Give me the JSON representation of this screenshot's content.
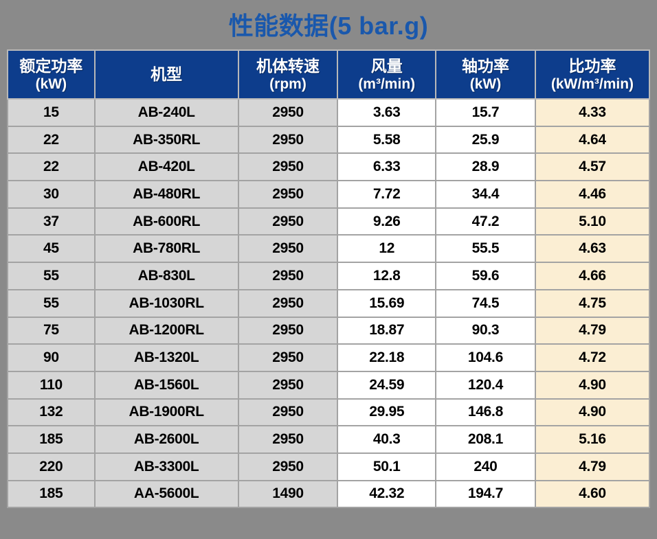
{
  "title": {
    "text": "性能数据(5 bar.g)"
  },
  "colors": {
    "page_background": "#8A8A8A",
    "title_text": "#1A58AC",
    "header_background": "#0D3D8C",
    "header_text": "#FFFFFF",
    "gray_column_fill": "#D6D6D6",
    "white_column_fill": "#FFFFFF",
    "highlight_column_fill": "#FBEED3",
    "grid_border": "#A3A3A3",
    "cell_text": "#000000"
  },
  "chart_data": {
    "type": "table",
    "title": "性能数据(5 bar.g)",
    "columns": [
      {
        "label": "额定功率",
        "unit": "(kW)"
      },
      {
        "label": "机型",
        "unit": ""
      },
      {
        "label": "机体转速",
        "unit": "(rpm)"
      },
      {
        "label": "风量",
        "unit": "(m³/min)"
      },
      {
        "label": "轴功率",
        "unit": "(kW)"
      },
      {
        "label": "比功率",
        "unit": "(kW/m³/min)"
      }
    ],
    "column_fills": [
      "#D6D6D6",
      "#D6D6D6",
      "#D6D6D6",
      "#FFFFFF",
      "#FFFFFF",
      "#FBEED3"
    ],
    "rows": [
      [
        "15",
        "AB-240L",
        "2950",
        "3.63",
        "15.7",
        "4.33"
      ],
      [
        "22",
        "AB-350RL",
        "2950",
        "5.58",
        "25.9",
        "4.64"
      ],
      [
        "22",
        "AB-420L",
        "2950",
        "6.33",
        "28.9",
        "4.57"
      ],
      [
        "30",
        "AB-480RL",
        "2950",
        "7.72",
        "34.4",
        "4.46"
      ],
      [
        "37",
        "AB-600RL",
        "2950",
        "9.26",
        "47.2",
        "5.10"
      ],
      [
        "45",
        "AB-780RL",
        "2950",
        "12",
        "55.5",
        "4.63"
      ],
      [
        "55",
        "AB-830L",
        "2950",
        "12.8",
        "59.6",
        "4.66"
      ],
      [
        "55",
        "AB-1030RL",
        "2950",
        "15.69",
        "74.5",
        "4.75"
      ],
      [
        "75",
        "AB-1200RL",
        "2950",
        "18.87",
        "90.3",
        "4.79"
      ],
      [
        "90",
        "AB-1320L",
        "2950",
        "22.18",
        "104.6",
        "4.72"
      ],
      [
        "110",
        "AB-1560L",
        "2950",
        "24.59",
        "120.4",
        "4.90"
      ],
      [
        "132",
        "AB-1900RL",
        "2950",
        "29.95",
        "146.8",
        "4.90"
      ],
      [
        "185",
        "AB-2600L",
        "2950",
        "40.3",
        "208.1",
        "5.16"
      ],
      [
        "220",
        "AB-3300L",
        "2950",
        "50.1",
        "240",
        "4.79"
      ],
      [
        "185",
        "AA-5600L",
        "1490",
        "42.32",
        "194.7",
        "4.60"
      ]
    ]
  }
}
